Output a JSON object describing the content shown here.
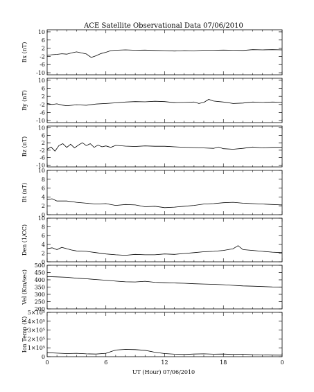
{
  "figure": {
    "title": "ACE Satellite Observational Data   07/06/2010",
    "xlabel": "UT (Hour)   07/06/2010"
  },
  "chart_data": [
    {
      "type": "line",
      "ylabel": "Bx (nT)",
      "yticks": [
        "10",
        "6",
        "2",
        "-2",
        "-6",
        "-10"
      ],
      "ylim": [
        -11,
        11
      ],
      "xticks": [
        "0",
        "6",
        "12",
        "18",
        "0"
      ],
      "xlim": [
        0,
        24
      ],
      "series": [
        {
          "points": [
            [
              0,
              -1.5
            ],
            [
              0.5,
              -1.2
            ],
            [
              1,
              -1
            ],
            [
              1.5,
              -0.7
            ],
            [
              2,
              -0.9
            ],
            [
              2.5,
              -0.3
            ],
            [
              3,
              0.2
            ],
            [
              3.5,
              -0.3
            ],
            [
              4,
              -0.8
            ],
            [
              4.5,
              -2.5
            ],
            [
              5,
              -1.7
            ],
            [
              5.5,
              -0.6
            ],
            [
              6,
              0
            ],
            [
              6.5,
              0.8
            ],
            [
              7,
              1
            ],
            [
              8,
              1.2
            ],
            [
              9,
              1
            ],
            [
              10,
              1.1
            ],
            [
              11,
              0.9
            ],
            [
              12,
              0.8
            ],
            [
              13,
              0.6
            ],
            [
              14,
              0.8
            ],
            [
              15,
              0.7
            ],
            [
              16,
              1
            ],
            [
              17,
              1
            ],
            [
              18,
              1.1
            ],
            [
              19,
              1
            ],
            [
              20,
              0.9
            ],
            [
              21,
              1.3
            ],
            [
              22,
              1.2
            ],
            [
              23,
              1.3
            ],
            [
              24,
              1.2
            ]
          ]
        }
      ]
    },
    {
      "type": "line",
      "ylabel": "By (nT)",
      "yticks": [
        "10",
        "6",
        "2",
        "-2",
        "-6",
        "-10"
      ],
      "ylim": [
        -11,
        11
      ],
      "xticks": [
        "0",
        "6",
        "12",
        "18",
        "0"
      ],
      "xlim": [
        0,
        24
      ],
      "series": [
        {
          "points": [
            [
              0,
              -1.5
            ],
            [
              0.5,
              -2
            ],
            [
              1,
              -1.7
            ],
            [
              1.5,
              -2.3
            ],
            [
              2,
              -2.6
            ],
            [
              3,
              -2.2
            ],
            [
              4,
              -2.4
            ],
            [
              5,
              -1.8
            ],
            [
              6,
              -1.5
            ],
            [
              7,
              -1.2
            ],
            [
              8,
              -0.8
            ],
            [
              9,
              -0.6
            ],
            [
              10,
              -0.7
            ],
            [
              11,
              -0.4
            ],
            [
              12,
              -0.6
            ],
            [
              13,
              -1.1
            ],
            [
              14,
              -1
            ],
            [
              15,
              -0.8
            ],
            [
              15.5,
              -1.5
            ],
            [
              16,
              -1
            ],
            [
              16.5,
              0.5
            ],
            [
              17,
              -0.3
            ],
            [
              18,
              -0.8
            ],
            [
              19,
              -1.5
            ],
            [
              20,
              -1.3
            ],
            [
              21,
              -0.8
            ],
            [
              22,
              -1
            ],
            [
              23,
              -0.8
            ],
            [
              24,
              -0.9
            ]
          ]
        }
      ]
    },
    {
      "type": "line",
      "ylabel": "Bz (nT)",
      "yticks": [
        "10",
        "6",
        "2",
        "-2",
        "-6",
        "-10"
      ],
      "ylim": [
        -11,
        11
      ],
      "xticks": [
        "0",
        "6",
        "12",
        "18",
        "0"
      ],
      "xlim": [
        0,
        24
      ],
      "series": [
        {
          "points": [
            [
              0,
              -1.5
            ],
            [
              0.4,
              -0.3
            ],
            [
              0.8,
              -2.5
            ],
            [
              1.2,
              0.5
            ],
            [
              1.6,
              1.5
            ],
            [
              2,
              -0.5
            ],
            [
              2.4,
              1.2
            ],
            [
              2.8,
              -0.8
            ],
            [
              3.2,
              0.8
            ],
            [
              3.6,
              2
            ],
            [
              4,
              0.5
            ],
            [
              4.4,
              1.5
            ],
            [
              4.8,
              -0.5
            ],
            [
              5.2,
              0.8
            ],
            [
              5.6,
              -0.2
            ],
            [
              6,
              0.3
            ],
            [
              6.5,
              -0.5
            ],
            [
              7,
              0.6
            ],
            [
              8,
              0.2
            ],
            [
              9,
              0
            ],
            [
              10,
              0.3
            ],
            [
              11,
              0.1
            ],
            [
              12,
              0.1
            ],
            [
              13,
              -0.2
            ],
            [
              14,
              -0.4
            ],
            [
              15,
              -0.6
            ],
            [
              16,
              -0.8
            ],
            [
              17,
              -1
            ],
            [
              17.5,
              -0.3
            ],
            [
              18,
              -1.2
            ],
            [
              19,
              -1.5
            ],
            [
              20,
              -1
            ],
            [
              21,
              -0.3
            ],
            [
              22,
              -0.8
            ],
            [
              23,
              -0.5
            ],
            [
              24,
              -0.5
            ]
          ]
        }
      ]
    },
    {
      "type": "line",
      "ylabel": "Bt (nT)",
      "yticks": [
        "10",
        "8",
        "6",
        "4",
        "2",
        "0"
      ],
      "ylim": [
        0,
        10
      ],
      "xticks": [
        "0",
        "6",
        "12",
        "18",
        "0"
      ],
      "xlim": [
        0,
        24
      ],
      "series": [
        {
          "points": [
            [
              0,
              3.4
            ],
            [
              0.5,
              3.6
            ],
            [
              1,
              3.1
            ],
            [
              2,
              3.1
            ],
            [
              3,
              2.8
            ],
            [
              4,
              2.6
            ],
            [
              5,
              2.4
            ],
            [
              6,
              2.5
            ],
            [
              7,
              2.1
            ],
            [
              8,
              2.3
            ],
            [
              9,
              2.2
            ],
            [
              10,
              1.8
            ],
            [
              11,
              1.9
            ],
            [
              12,
              1.6
            ],
            [
              13,
              1.7
            ],
            [
              14,
              1.9
            ],
            [
              15,
              2.1
            ],
            [
              16,
              2.4
            ],
            [
              17,
              2.5
            ],
            [
              18,
              2.7
            ],
            [
              19,
              2.8
            ],
            [
              20,
              2.6
            ],
            [
              21,
              2.5
            ],
            [
              22,
              2.4
            ],
            [
              23,
              2.3
            ],
            [
              24,
              2.2
            ]
          ]
        }
      ]
    },
    {
      "type": "line",
      "ylabel": "Den (1/CC)",
      "yticks": [
        "10",
        "8",
        "6",
        "4",
        "2",
        "0"
      ],
      "ylim": [
        0,
        10
      ],
      "xticks": [
        "0",
        "6",
        "12",
        "18",
        "0"
      ],
      "xlim": [
        0,
        24
      ],
      "series": [
        {
          "points": [
            [
              0,
              3
            ],
            [
              0.5,
              3.2
            ],
            [
              1,
              2.8
            ],
            [
              1.5,
              3.3
            ],
            [
              2,
              3
            ],
            [
              2.5,
              2.7
            ],
            [
              3,
              2.5
            ],
            [
              4,
              2.4
            ],
            [
              5,
              2.1
            ],
            [
              6,
              1.8
            ],
            [
              7,
              1.6
            ],
            [
              8,
              1.5
            ],
            [
              9,
              1.7
            ],
            [
              10,
              1.6
            ],
            [
              11,
              1.6
            ],
            [
              12,
              1.8
            ],
            [
              13,
              1.7
            ],
            [
              14,
              1.9
            ],
            [
              15,
              2.1
            ],
            [
              16,
              2.3
            ],
            [
              17,
              2.4
            ],
            [
              18,
              2.6
            ],
            [
              19,
              3
            ],
            [
              19.5,
              3.7
            ],
            [
              20,
              2.8
            ],
            [
              21,
              2.6
            ],
            [
              22,
              2.4
            ],
            [
              23,
              2.2
            ],
            [
              24,
              2.1
            ]
          ]
        }
      ]
    },
    {
      "type": "line",
      "ylabel": "Vel (Km/sec)",
      "yticks": [
        "500",
        "450",
        "400",
        "350",
        "300",
        "250",
        "200"
      ],
      "ylim": [
        200,
        500
      ],
      "xticks": [
        "0",
        "6",
        "12",
        "18",
        "0"
      ],
      "xlim": [
        0,
        24
      ],
      "series": [
        {
          "points": [
            [
              0,
              422
            ],
            [
              1,
              420
            ],
            [
              2,
              417
            ],
            [
              3,
              411
            ],
            [
              4,
              407
            ],
            [
              5,
              402
            ],
            [
              6,
              397
            ],
            [
              7,
              391
            ],
            [
              8,
              386
            ],
            [
              9,
              385
            ],
            [
              10,
              390
            ],
            [
              11,
              383
            ],
            [
              12,
              380
            ],
            [
              13,
              378
            ],
            [
              14,
              376
            ],
            [
              15,
              373
            ],
            [
              16,
              371
            ],
            [
              17,
              369
            ],
            [
              18,
              366
            ],
            [
              19,
              362
            ],
            [
              20,
              358
            ],
            [
              21,
              356
            ],
            [
              22,
              354
            ],
            [
              23,
              351
            ],
            [
              24,
              350
            ]
          ]
        }
      ]
    },
    {
      "type": "line",
      "ylabel": "Ion Temp (K)",
      "yticks": [
        "5×10⁵",
        "4×10⁵",
        "3×10⁵",
        "2×10⁵",
        "1×10⁵",
        "0"
      ],
      "ylim": [
        0,
        500000
      ],
      "xticks": [
        "0",
        "6",
        "12",
        "18",
        "0"
      ],
      "xlim": [
        0,
        24
      ],
      "series": [
        {
          "points": [
            [
              0,
              45000
            ],
            [
              1,
              40000
            ],
            [
              2,
              35000
            ],
            [
              3,
              38000
            ],
            [
              4,
              32000
            ],
            [
              5,
              30000
            ],
            [
              6,
              38000
            ],
            [
              7,
              75000
            ],
            [
              8,
              82000
            ],
            [
              9,
              80000
            ],
            [
              10,
              72000
            ],
            [
              11,
              50000
            ],
            [
              12,
              35000
            ],
            [
              13,
              28000
            ],
            [
              14,
              25000
            ],
            [
              15,
              30000
            ],
            [
              16,
              32000
            ],
            [
              17,
              28000
            ],
            [
              18,
              30000
            ],
            [
              19,
              25000
            ],
            [
              20,
              28000
            ],
            [
              21,
              22000
            ],
            [
              22,
              20000
            ],
            [
              23,
              18000
            ],
            [
              24,
              17000
            ]
          ]
        }
      ]
    }
  ]
}
